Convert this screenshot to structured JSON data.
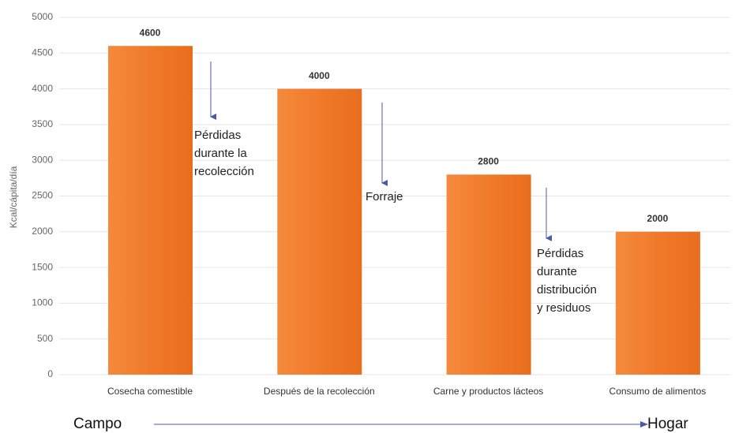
{
  "chart_data": {
    "type": "bar",
    "y_label": "Kcal/cápita/día",
    "categories": [
      "Cosecha comestible",
      "Después de la recolección",
      "Carne y productos lácteos",
      "Consumo de alimentos"
    ],
    "values": [
      4600,
      4000,
      2800,
      2000
    ],
    "color": "#f07a2a",
    "ylim": [
      0,
      5000
    ],
    "yticks": [
      0,
      500,
      1000,
      1500,
      2000,
      2500,
      3000,
      3500,
      4000,
      4500,
      5000
    ],
    "grid": true,
    "annotations": [
      {
        "lines": [
          "Pérdidas",
          "durante la",
          "recolección"
        ]
      },
      {
        "lines": [
          "Forraje"
        ]
      },
      {
        "lines": [
          "Pérdidas",
          "durante",
          "distribución",
          "y residuos"
        ]
      }
    ],
    "flow_start": "Campo",
    "flow_end": "Hogar"
  }
}
